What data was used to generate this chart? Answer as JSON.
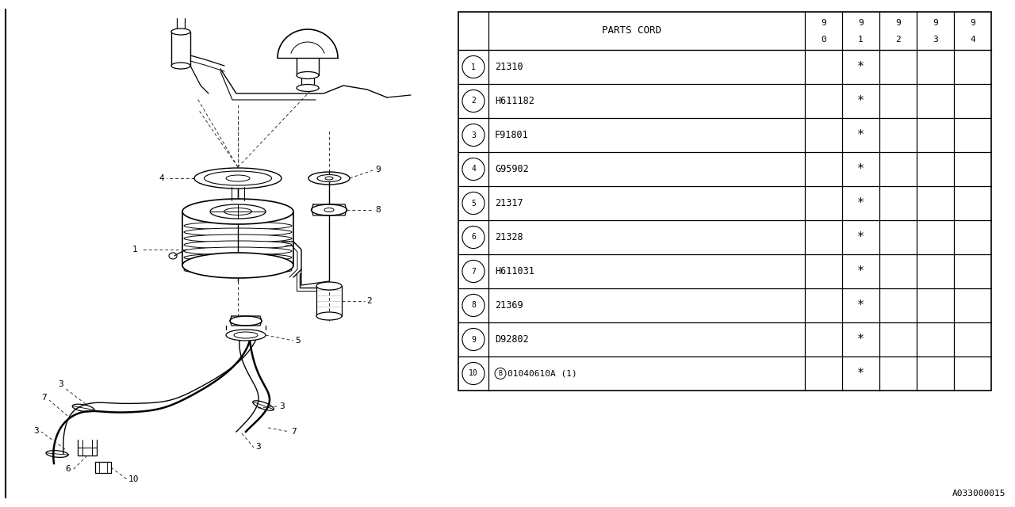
{
  "figure_width": 12.8,
  "figure_height": 6.4,
  "bg_color": "#ffffff",
  "line_color": "#000000",
  "header": "PARTS CORD",
  "year_cols": [
    [
      "9",
      "0"
    ],
    [
      "9",
      "1"
    ],
    [
      "9",
      "2"
    ],
    [
      "9",
      "3"
    ],
    [
      "9",
      "4"
    ]
  ],
  "rows": [
    {
      "num": "1",
      "code": "21310",
      "b_prefix": false,
      "marks": [
        false,
        true,
        false,
        false,
        false
      ]
    },
    {
      "num": "2",
      "code": "H611182",
      "b_prefix": false,
      "marks": [
        false,
        true,
        false,
        false,
        false
      ]
    },
    {
      "num": "3",
      "code": "F91801",
      "b_prefix": false,
      "marks": [
        false,
        true,
        false,
        false,
        false
      ]
    },
    {
      "num": "4",
      "code": "G95902",
      "b_prefix": false,
      "marks": [
        false,
        true,
        false,
        false,
        false
      ]
    },
    {
      "num": "5",
      "code": "21317",
      "b_prefix": false,
      "marks": [
        false,
        true,
        false,
        false,
        false
      ]
    },
    {
      "num": "6",
      "code": "21328",
      "b_prefix": false,
      "marks": [
        false,
        true,
        false,
        false,
        false
      ]
    },
    {
      "num": "7",
      "code": "H611031",
      "b_prefix": false,
      "marks": [
        false,
        true,
        false,
        false,
        false
      ]
    },
    {
      "num": "8",
      "code": "21369",
      "b_prefix": false,
      "marks": [
        false,
        true,
        false,
        false,
        false
      ]
    },
    {
      "num": "9",
      "code": "D92802",
      "b_prefix": false,
      "marks": [
        false,
        true,
        false,
        false,
        false
      ]
    },
    {
      "num": "10",
      "code": "01040610A (1)",
      "b_prefix": true,
      "marks": [
        false,
        true,
        false,
        false,
        false
      ]
    }
  ],
  "diagram_label": "A033000015"
}
